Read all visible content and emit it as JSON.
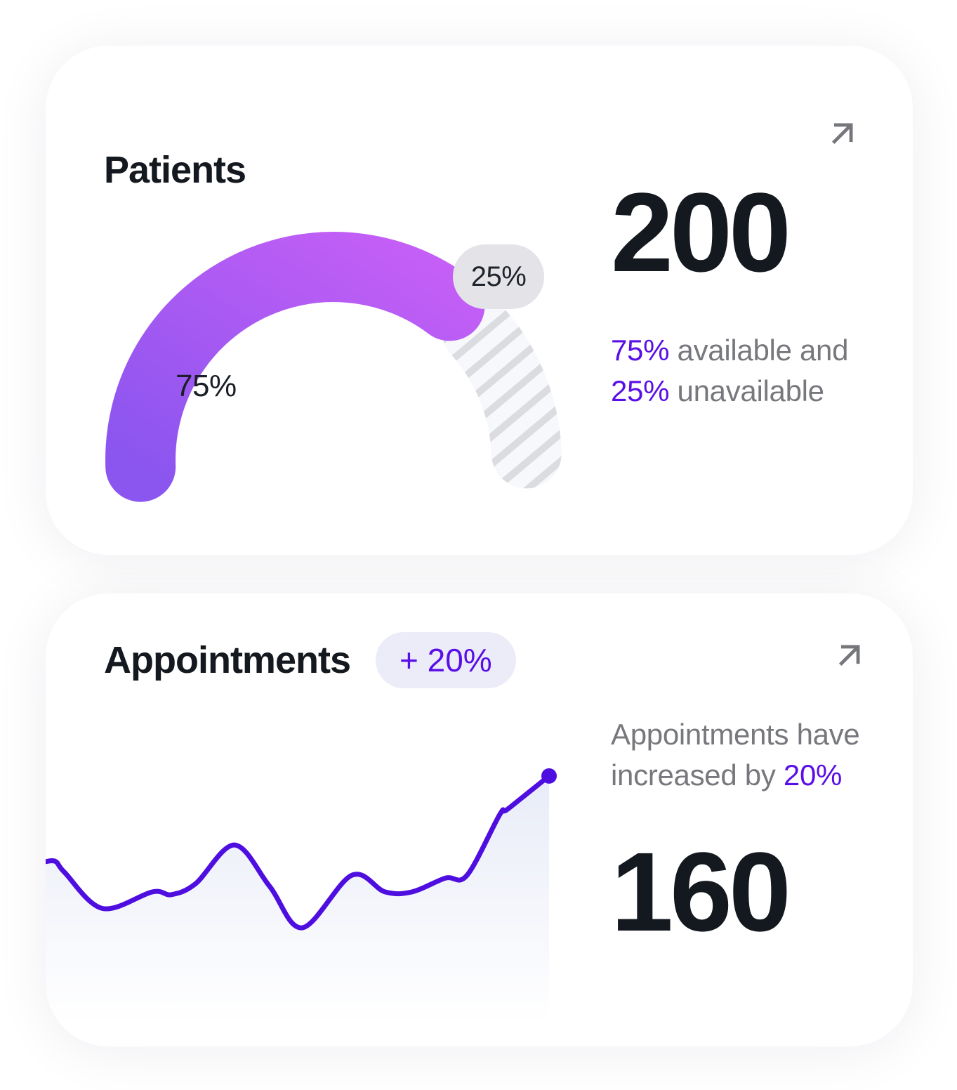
{
  "colors": {
    "accent_purple": "#5A0FE6",
    "line_purple": "#4E0EE0",
    "number_dark": "#14181F",
    "text_gray": "#77787D",
    "gauge_gradient_start": "#8B55EF",
    "gauge_gradient_end": "#C55FF6",
    "hatch_base": "#F7F8FB",
    "hatch_stripe": "#DBDCE0",
    "badge_increase_bg": "#ECECF9",
    "badge_unavailable_bg": "#E4E4E8",
    "area_fill": "#E7EBF7"
  },
  "patients_card": {
    "title": "Patients",
    "expand_icon": "arrow-up-right",
    "value": "200",
    "gauge_label_available": "75%",
    "gauge_label_unavailable": "25%",
    "summary_line1": [
      {
        "text": "75%",
        "accent": true
      },
      {
        "text": " available and",
        "accent": false
      }
    ],
    "summary_line2": [
      {
        "text": "25%",
        "accent": true
      },
      {
        "text": " unavailable",
        "accent": false
      }
    ]
  },
  "appointments_card": {
    "title": "Appointments",
    "badge": "+ 20%",
    "expand_icon": "arrow-up-right",
    "value": "160",
    "summary_line1": [
      {
        "text": "Appointments have",
        "accent": false
      }
    ],
    "summary_line2": [
      {
        "text": "increased by ",
        "accent": false
      },
      {
        "text": "20%",
        "accent": true
      }
    ]
  },
  "chart_data": [
    {
      "type": "gauge",
      "title": "Patients availability",
      "categories": [
        "available",
        "unavailable"
      ],
      "values": [
        75,
        25
      ],
      "labels": [
        "75%",
        "25%"
      ],
      "total_label": "200",
      "start_angle_deg": 180,
      "end_angle_deg": 0,
      "legend_position": "none",
      "styles": [
        "purple-gradient",
        "gray-diagonal-hatch"
      ]
    },
    {
      "type": "area",
      "title": "Appointments trend",
      "x": [
        0,
        2,
        3.8,
        11.3,
        21.2,
        25,
        29.8,
        37.5,
        44.5,
        51,
        60.8,
        67.4,
        72.8,
        79.4,
        83.7,
        90.2,
        91.8,
        100
      ],
      "values": [
        67,
        67,
        63,
        50,
        56,
        55,
        59,
        73,
        58,
        43,
        62,
        56,
        56,
        61,
        62,
        84,
        86,
        98
      ],
      "xlim": [
        0,
        100
      ],
      "ylim": [
        0,
        100
      ],
      "grid": false,
      "axes_hidden": true,
      "legend_position": "none",
      "end_marker": true
    }
  ]
}
